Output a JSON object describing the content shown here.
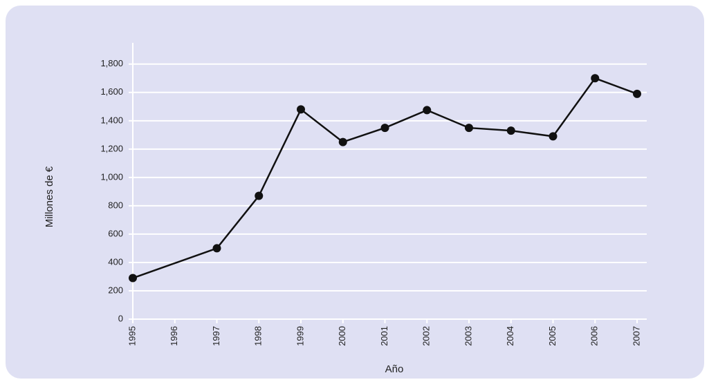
{
  "chart_data": {
    "type": "line",
    "x_label": "Año",
    "y_label": "Millones de €",
    "x": [
      1995,
      1997,
      1998,
      1999,
      2000,
      2001,
      2002,
      2003,
      2004,
      2005,
      2006,
      2007
    ],
    "series": [
      {
        "name": "Millones de €",
        "color": "#111111",
        "values": [
          290,
          500,
          870,
          1480,
          1250,
          1350,
          1475,
          1350,
          1330,
          1290,
          1700,
          1590
        ]
      }
    ],
    "xlim": [
      1995,
      2007
    ],
    "xticks": [
      1995,
      1996,
      1997,
      1998,
      1999,
      2000,
      2001,
      2002,
      2003,
      2004,
      2005,
      2006,
      2007
    ],
    "ylim": [
      0,
      1950
    ],
    "yticks": [
      0,
      200,
      400,
      600,
      800,
      {
        "value": 1000,
        "label": "1,000"
      },
      {
        "value": 1200,
        "label": "1,200"
      },
      {
        "value": 1400,
        "label": "1,400"
      },
      {
        "value": 1600,
        "label": "1,600"
      },
      {
        "value": 1800,
        "label": "1,800"
      }
    ],
    "grid": true
  }
}
